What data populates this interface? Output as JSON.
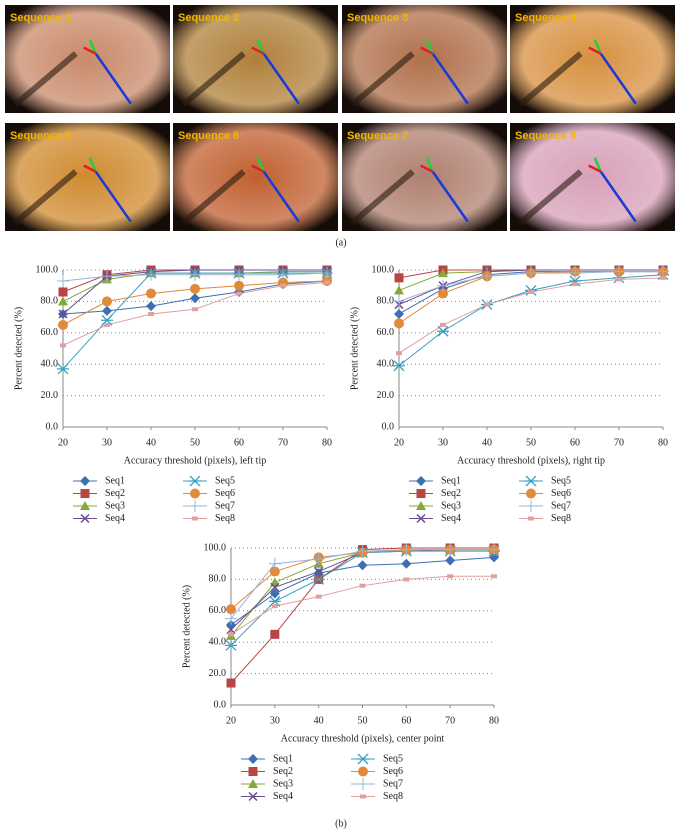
{
  "panel_a": {
    "image_labels": [
      "Sequence 1",
      "Sequence 2",
      "Sequence 3",
      "Sequence 4",
      "Sequence 5",
      "Sequence 6",
      "Sequence 7",
      "Sequence 8"
    ],
    "caption": "(a)"
  },
  "caption_b": "(b)",
  "chart_data": [
    {
      "type": "line",
      "x_label": "Accuracy threshold (pixels), left tip",
      "y_label": "Percent detected (%)",
      "x": [
        20,
        30,
        40,
        50,
        60,
        70,
        80
      ],
      "xlim": [
        20,
        80
      ],
      "xticks": [
        20,
        30,
        40,
        50,
        60,
        70,
        80
      ],
      "ylim": [
        0,
        100
      ],
      "yticks": [
        {
          "value": 0,
          "label": "0.0"
        },
        {
          "value": 20,
          "label": "20.0"
        },
        {
          "value": 40,
          "label": "40.0"
        },
        {
          "value": 60,
          "label": "60.0"
        },
        {
          "value": 80,
          "label": "80.0"
        },
        {
          "value": 100,
          "label": "100.0"
        }
      ],
      "grid": true,
      "series": [
        {
          "name": "Seq1",
          "color": "#3f6fb0",
          "marker": "diamond",
          "values": [
            72,
            74,
            77,
            82,
            86,
            91,
            93
          ]
        },
        {
          "name": "Seq2",
          "color": "#b84444",
          "marker": "square",
          "values": [
            86,
            97,
            100,
            100,
            100,
            100,
            100
          ]
        },
        {
          "name": "Seq3",
          "color": "#86a83a",
          "marker": "triangle",
          "values": [
            80,
            94,
            98,
            98,
            98,
            99,
            99
          ]
        },
        {
          "name": "Seq4",
          "color": "#6a4c93",
          "marker": "x",
          "values": [
            72,
            96,
            99,
            100,
            100,
            100,
            100
          ]
        },
        {
          "name": "Seq5",
          "color": "#3aa0c0",
          "marker": "star",
          "values": [
            37,
            68,
            98,
            98,
            98,
            98,
            98
          ]
        },
        {
          "name": "Seq6",
          "color": "#e08a3a",
          "marker": "circle",
          "values": [
            65,
            80,
            85,
            88,
            90,
            92,
            93
          ]
        },
        {
          "name": "Seq7",
          "color": "#9ab4d8",
          "marker": "plus",
          "values": [
            93,
            96,
            97,
            97,
            97,
            97,
            98
          ]
        },
        {
          "name": "Seq8",
          "color": "#e0a0a0",
          "marker": "dash",
          "values": [
            52,
            65,
            72,
            75,
            85,
            90,
            92
          ]
        }
      ]
    },
    {
      "type": "line",
      "x_label": "Accuracy threshold (pixels), right tip",
      "y_label": "Percent detected (%)",
      "x": [
        20,
        30,
        40,
        50,
        60,
        70,
        80
      ],
      "xlim": [
        20,
        80
      ],
      "xticks": [
        20,
        30,
        40,
        50,
        60,
        70,
        80
      ],
      "ylim": [
        0,
        100
      ],
      "yticks": [
        {
          "value": 0,
          "label": "0.0"
        },
        {
          "value": 20,
          "label": "20.0"
        },
        {
          "value": 40,
          "label": "40.0"
        },
        {
          "value": 60,
          "label": "60.0"
        },
        {
          "value": 80,
          "label": "80.0"
        },
        {
          "value": 100,
          "label": "100.0"
        }
      ],
      "grid": true,
      "series": [
        {
          "name": "Seq1",
          "color": "#3f6fb0",
          "marker": "diamond",
          "values": [
            72,
            88,
            97,
            99,
            99,
            99,
            99
          ]
        },
        {
          "name": "Seq2",
          "color": "#b84444",
          "marker": "square",
          "values": [
            95,
            100,
            100,
            100,
            100,
            100,
            100
          ]
        },
        {
          "name": "Seq3",
          "color": "#86a83a",
          "marker": "triangle",
          "values": [
            87,
            98,
            99,
            100,
            100,
            100,
            100
          ]
        },
        {
          "name": "Seq4",
          "color": "#6a4c93",
          "marker": "x",
          "values": [
            78,
            90,
            99,
            100,
            100,
            100,
            100
          ]
        },
        {
          "name": "Seq5",
          "color": "#3aa0c0",
          "marker": "star",
          "values": [
            39,
            61,
            78,
            87,
            93,
            95,
            97
          ]
        },
        {
          "name": "Seq6",
          "color": "#e08a3a",
          "marker": "circle",
          "values": [
            66,
            85,
            96,
            98,
            99,
            99,
            99
          ]
        },
        {
          "name": "Seq7",
          "color": "#9ab4d8",
          "marker": "plus",
          "values": [
            80,
            90,
            96,
            98,
            98,
            99,
            99
          ]
        },
        {
          "name": "Seq8",
          "color": "#e0a0a0",
          "marker": "dash",
          "values": [
            47,
            65,
            78,
            86,
            91,
            94,
            95
          ]
        }
      ]
    },
    {
      "type": "line",
      "x_label": "Accuracy threshold (pixels), center point",
      "y_label": "Percent detected (%)",
      "x": [
        20,
        30,
        40,
        50,
        60,
        70,
        80
      ],
      "xlim": [
        20,
        80
      ],
      "xticks": [
        20,
        30,
        40,
        50,
        60,
        70,
        80
      ],
      "ylim": [
        0,
        100
      ],
      "yticks": [
        {
          "value": 0,
          "label": "0.0"
        },
        {
          "value": 20,
          "label": "20.0"
        },
        {
          "value": 40,
          "label": "40.0"
        },
        {
          "value": 60,
          "label": "60.0"
        },
        {
          "value": 80,
          "label": "80.0"
        },
        {
          "value": 100,
          "label": "100.0"
        }
      ],
      "grid": true,
      "series": [
        {
          "name": "Seq1",
          "color": "#3f6fb0",
          "marker": "diamond",
          "values": [
            51,
            71,
            84,
            89,
            90,
            92,
            94
          ]
        },
        {
          "name": "Seq2",
          "color": "#b84444",
          "marker": "square",
          "values": [
            14,
            45,
            80,
            99,
            100,
            100,
            100
          ]
        },
        {
          "name": "Seq3",
          "color": "#86a83a",
          "marker": "triangle",
          "values": [
            44,
            78,
            90,
            97,
            99,
            99,
            99
          ]
        },
        {
          "name": "Seq4",
          "color": "#6a4c93",
          "marker": "x",
          "values": [
            48,
            75,
            85,
            97,
            98,
            99,
            99
          ]
        },
        {
          "name": "Seq5",
          "color": "#3aa0c0",
          "marker": "star",
          "values": [
            38,
            66,
            80,
            97,
            98,
            98,
            98
          ]
        },
        {
          "name": "Seq6",
          "color": "#e08a3a",
          "marker": "circle",
          "values": [
            61,
            85,
            94,
            97,
            99,
            99,
            99
          ]
        },
        {
          "name": "Seq7",
          "color": "#9ab4d8",
          "marker": "plus",
          "values": [
            55,
            90,
            93,
            98,
            99,
            99,
            99
          ]
        },
        {
          "name": "Seq8",
          "color": "#e0a0a0",
          "marker": "dash",
          "values": [
            45,
            63,
            69,
            76,
            80,
            82,
            82
          ]
        }
      ]
    }
  ]
}
